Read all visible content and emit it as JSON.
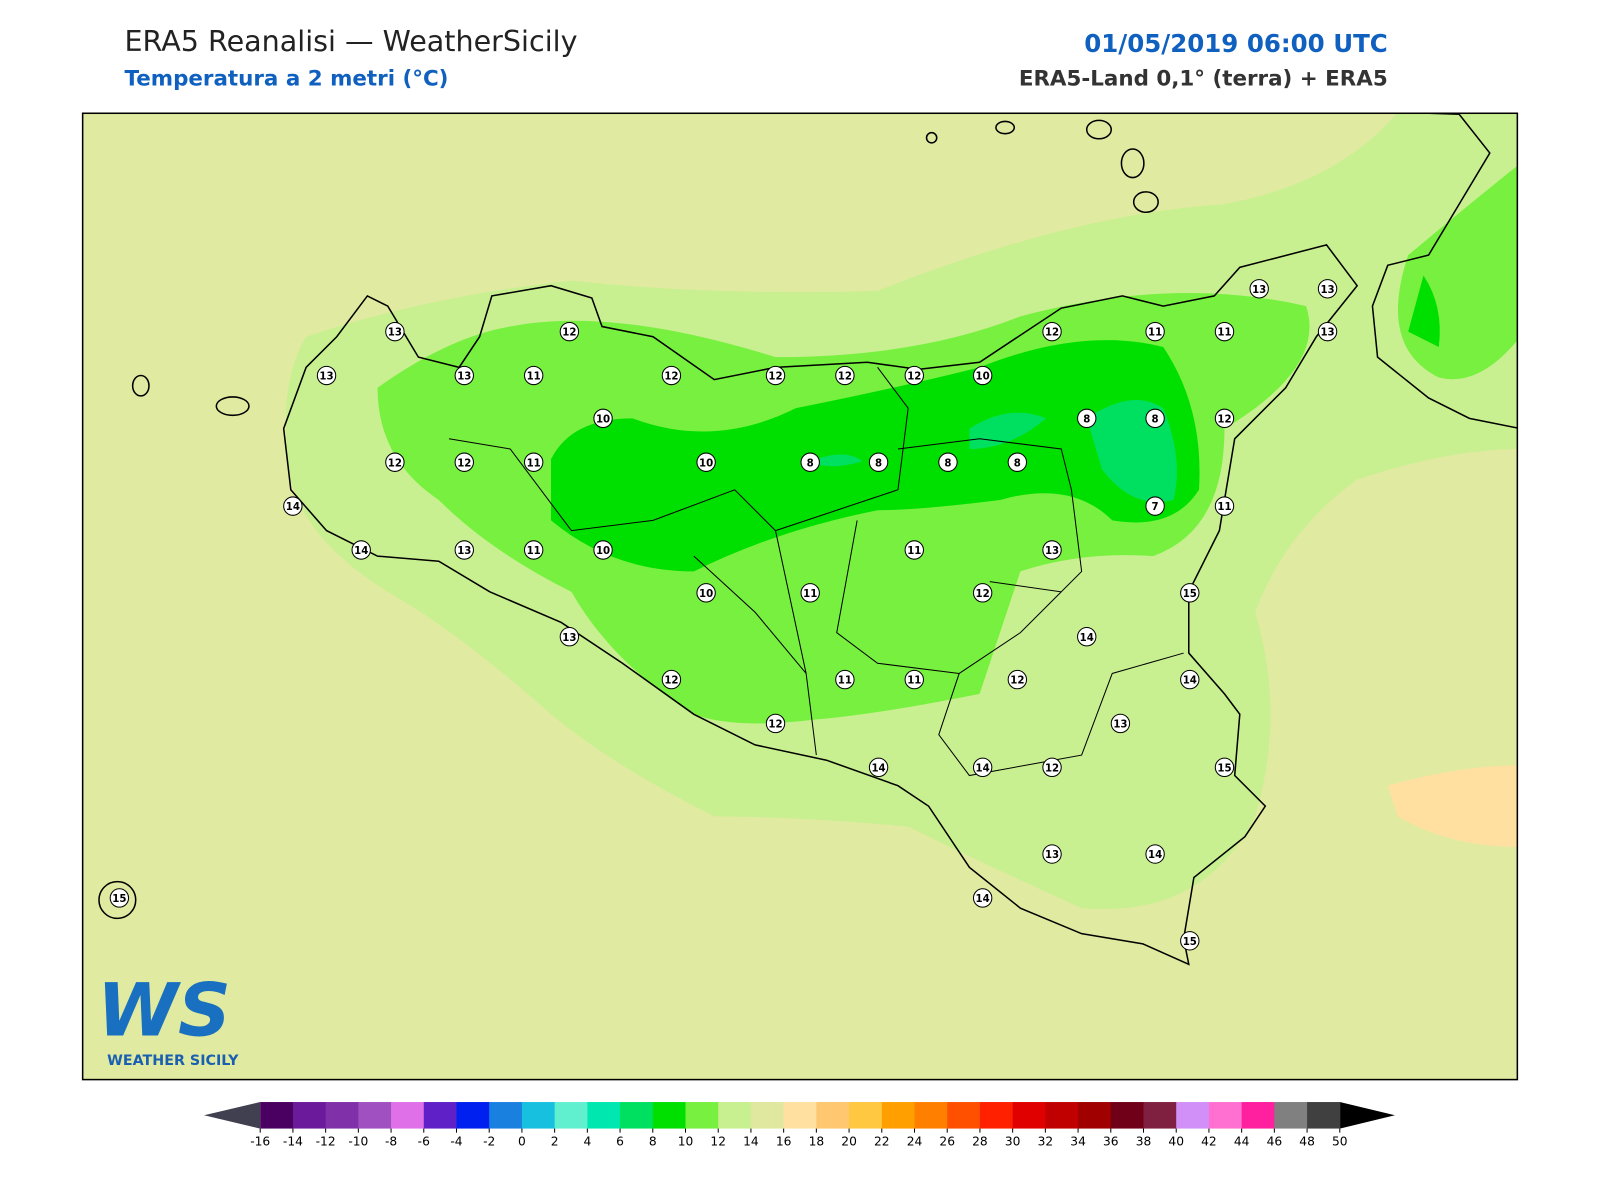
{
  "header": {
    "title": "ERA5 Reanalisi — WeatherSicily",
    "subtitle": "Temperatura a 2 metri (°C)",
    "date": "01/05/2019 06:00 UTC",
    "source": "ERA5-Land 0,1° (terra) + ERA5"
  },
  "map": {
    "stations": [
      13,
      12,
      13,
      13,
      11,
      12,
      12,
      12,
      12,
      10,
      12,
      11,
      11,
      13,
      13,
      13,
      10,
      8,
      8,
      12,
      12,
      12,
      11,
      10,
      8,
      8,
      8,
      8,
      14,
      7,
      11,
      14,
      13,
      11,
      10,
      11,
      13,
      10,
      11,
      12,
      15,
      13,
      14,
      12,
      11,
      11,
      12,
      14,
      12,
      13,
      14,
      14,
      12,
      15,
      13,
      14,
      14,
      15,
      15
    ]
  },
  "logo": {
    "mark": "WS",
    "name": "WEATHER SICILY"
  },
  "colorbar": {
    "ticks": [
      -16,
      -14,
      -12,
      -10,
      -8,
      -6,
      -4,
      -2,
      0,
      2,
      4,
      6,
      8,
      10,
      12,
      14,
      16,
      18,
      20,
      22,
      24,
      26,
      28,
      30,
      32,
      34,
      36,
      38,
      40,
      42,
      44,
      46,
      48,
      50
    ],
    "colors": [
      "#4a0060",
      "#6a1a9a",
      "#8030a8",
      "#a050c0",
      "#e070e8",
      "#6020c8",
      "#0020f0",
      "#1a80e0",
      "#18c0e0",
      "#60f0d0",
      "#00e8b0",
      "#00e060",
      "#00e000",
      "#78f040",
      "#c8f090",
      "#e0e8a0",
      "#ffe0a0",
      "#ffc870",
      "#ffc840",
      "#ffa000",
      "#ff8000",
      "#ff5000",
      "#ff2000",
      "#e00000",
      "#c00000",
      "#a00000",
      "#700018",
      "#802040",
      "#d090f8",
      "#ff70d0",
      "#ff20a0",
      "#808080",
      "#404040"
    ],
    "under_color": "#404050",
    "over_color": "#000000"
  }
}
